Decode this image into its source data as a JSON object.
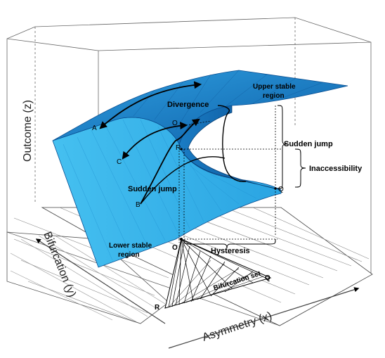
{
  "axes": {
    "z_label": "Outcome (z)",
    "y_label": "Bifurcation (y)",
    "x_label": "Asymmetry (x)"
  },
  "regions": {
    "upper": [
      "Upper stable",
      "region"
    ],
    "lower": [
      "Lower stable",
      "region"
    ]
  },
  "annotations": {
    "divergence": "Divergence",
    "sudden_jump_upper": "Sudden jump",
    "sudden_jump_lower": "Sudden jump",
    "inaccessibility": "Inaccessibility",
    "hysteresis": "Hysteresis",
    "bifurcation_set": "Bifurcation set"
  },
  "points": {
    "A": "A",
    "B": "B",
    "C": "C",
    "O": "O",
    "R": "R",
    "Q": "Q",
    "O_base": "O",
    "Q_base": "Q",
    "R_base": "R"
  },
  "colors": {
    "surface_light": "#39b4ec",
    "surface_mid": "#1f8fd0",
    "surface_dark": "#0d5fa8",
    "box_line": "#555555"
  }
}
